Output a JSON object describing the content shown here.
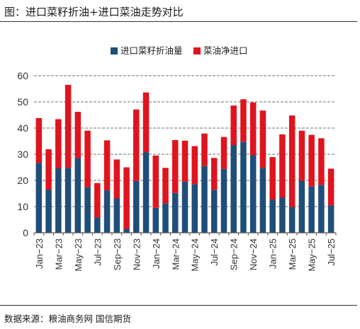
{
  "header": {
    "title": "图：进口菜籽折油+进口菜油走势对比"
  },
  "footer": {
    "source": "数据来源：粮油商务网  国信期货"
  },
  "colors": {
    "series1": "#1f4e79",
    "series2": "#e0141e",
    "grid": "#8c8c8c",
    "axis": "#555555"
  },
  "chart_data": {
    "type": "bar",
    "stacked": true,
    "legend_position": "top-right",
    "grid": true,
    "ylim": [
      0,
      60
    ],
    "yticks": [
      0,
      10,
      20,
      30,
      40,
      50,
      60
    ],
    "categories": [
      "Jan-23",
      "Feb-23",
      "Mar-23",
      "Apr-23",
      "May-23",
      "Jun-23",
      "Jul-23",
      "Aug-23",
      "Sep-23",
      "Oct-23",
      "Nov-23",
      "Dec-23",
      "Jan-24",
      "Feb-24",
      "Mar-24",
      "Apr-24",
      "May-24",
      "Jun-24",
      "Jul-24",
      "Aug-24",
      "Sep-24",
      "Oct-24",
      "Nov-24",
      "Dec-24",
      "Jan-25",
      "Feb-25",
      "Mar-25",
      "Apr-25",
      "May-25",
      "Jun-25",
      "Jul-25"
    ],
    "tick_labels": [
      "Jan−23",
      "Mar−23",
      "May−23",
      "Jul−23",
      "Sep−23",
      "Nov−23",
      "Jan−24",
      "Mar−24",
      "May−24",
      "Jul−24",
      "Sep−24",
      "Nov−24",
      "Jan−25",
      "Mar−25",
      "May−25",
      "Jul−25"
    ],
    "series": [
      {
        "name": "进口菜籽折油量",
        "values": [
          26.7,
          16.5,
          24.6,
          24.8,
          28.5,
          17.4,
          5.8,
          16.2,
          13.1,
          1.5,
          19.8,
          30.8,
          9.5,
          11.3,
          15.2,
          19.5,
          18.6,
          25.5,
          16.4,
          24.4,
          33.5,
          34.8,
          29.6,
          24.8,
          12.7,
          13.5,
          9.9,
          19.9,
          17.6,
          18.3,
          10.5
        ]
      },
      {
        "name": "菜油净进口",
        "values": [
          17.1,
          15.4,
          18.8,
          31.7,
          17.7,
          21.6,
          13.2,
          19.1,
          14.9,
          23.5,
          27.3,
          22.8,
          20.0,
          13.5,
          20.2,
          15.7,
          14.5,
          12.4,
          12.2,
          12.2,
          15.1,
          16.2,
          20.2,
          21.9,
          16.2,
          24.1,
          34.9,
          19.1,
          19.8,
          17.8,
          14.0
        ]
      }
    ]
  }
}
